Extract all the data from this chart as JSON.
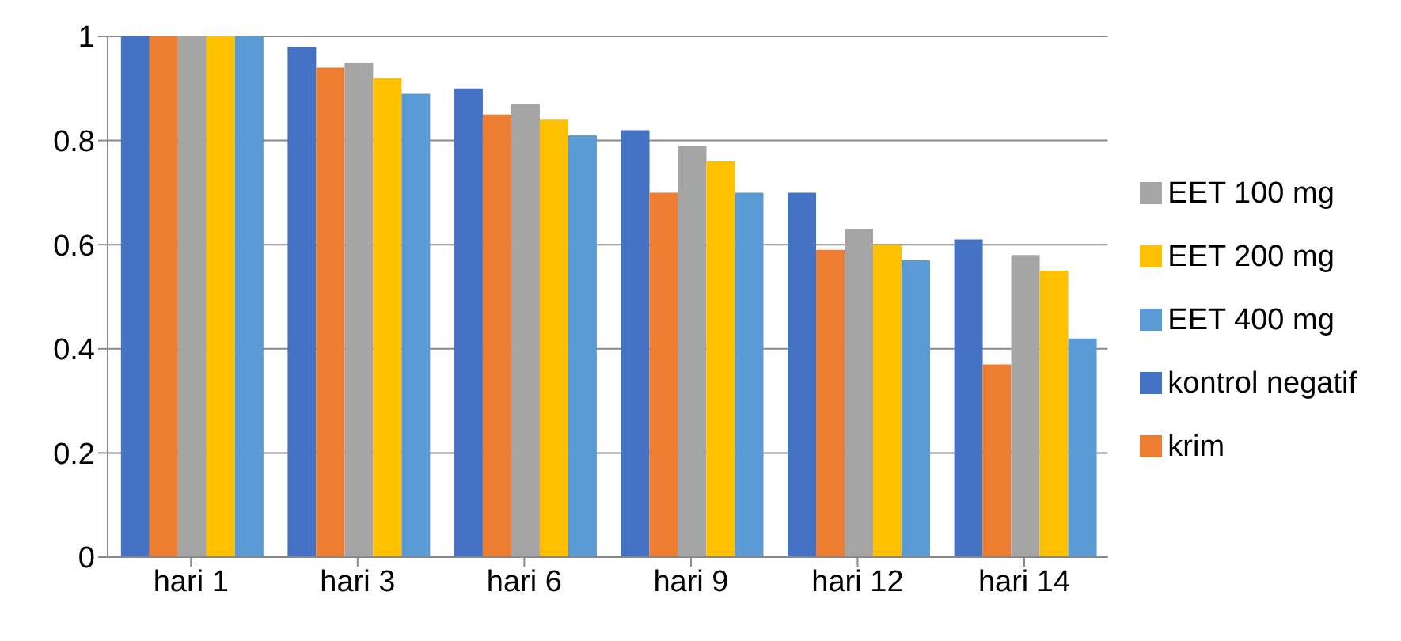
{
  "chart_data": {
    "type": "bar",
    "categories": [
      "hari 1",
      "hari 3",
      "hari 6",
      "hari 9",
      "hari 12",
      "hari 14"
    ],
    "series": [
      {
        "name": "kontrol negatif",
        "color": "#4472c4",
        "values": [
          1,
          0.98,
          0.9,
          0.82,
          0.7,
          0.61
        ]
      },
      {
        "name": "krim",
        "color": "#ed7d31",
        "values": [
          1,
          0.94,
          0.85,
          0.7,
          0.59,
          0.37
        ]
      },
      {
        "name": "EET 100 mg",
        "color": "#a5a5a5",
        "values": [
          1,
          0.95,
          0.87,
          0.79,
          0.63,
          0.58
        ]
      },
      {
        "name": "EET 200 mg",
        "color": "#ffc000",
        "values": [
          1,
          0.92,
          0.84,
          0.76,
          0.6,
          0.55
        ]
      },
      {
        "name": "EET 400 mg",
        "color": "#5b9bd5",
        "values": [
          1,
          0.89,
          0.81,
          0.7,
          0.57,
          0.42
        ]
      }
    ],
    "ylim": [
      0,
      1
    ],
    "yticks": [
      0,
      0.2,
      0.4,
      0.6,
      0.8,
      1
    ],
    "grid": "y",
    "legend": "right"
  }
}
